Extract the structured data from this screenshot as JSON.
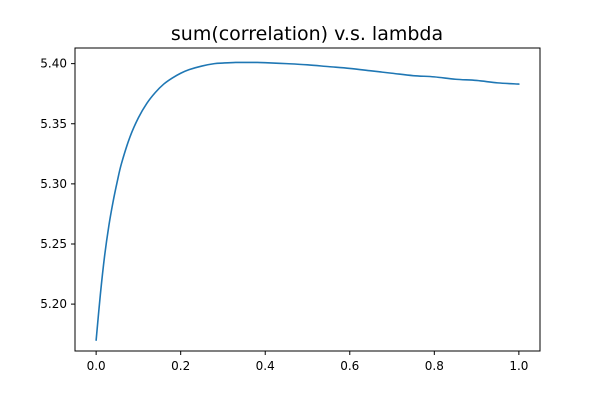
{
  "chart_data": {
    "type": "line",
    "title": "sum(correlation) v.s. lambda",
    "xlabel": "",
    "ylabel": "",
    "xlim": [
      -0.05,
      1.05
    ],
    "ylim": [
      5.161,
      5.413
    ],
    "grid": false,
    "x_ticks": [
      0.0,
      0.2,
      0.4,
      0.6,
      0.8,
      1.0
    ],
    "x_tick_labels": [
      "0.0",
      "0.2",
      "0.4",
      "0.6",
      "0.8",
      "1.0"
    ],
    "y_ticks": [
      5.2,
      5.25,
      5.3,
      5.35,
      5.4
    ],
    "y_tick_labels": [
      "5.20",
      "5.25",
      "5.30",
      "5.35",
      "5.40"
    ],
    "series": [
      {
        "color": "#1f77b4",
        "x": [
          0.0,
          0.01,
          0.02,
          0.03,
          0.04,
          0.05,
          0.06,
          0.08,
          0.1,
          0.12,
          0.14,
          0.16,
          0.18,
          0.2,
          0.22,
          0.25,
          0.28,
          0.3,
          0.33,
          0.36,
          0.38,
          0.4,
          0.45,
          0.5,
          0.55,
          0.6,
          0.65,
          0.7,
          0.75,
          0.8,
          0.85,
          0.9,
          0.95,
          1.0
        ],
        "y": [
          5.17,
          5.208,
          5.24,
          5.265,
          5.285,
          5.302,
          5.317,
          5.339,
          5.355,
          5.367,
          5.376,
          5.383,
          5.388,
          5.392,
          5.395,
          5.398,
          5.4,
          5.4005,
          5.401,
          5.401,
          5.401,
          5.4008,
          5.4,
          5.399,
          5.3975,
          5.396,
          5.394,
          5.392,
          5.39,
          5.389,
          5.387,
          5.386,
          5.384,
          5.383
        ]
      }
    ]
  }
}
